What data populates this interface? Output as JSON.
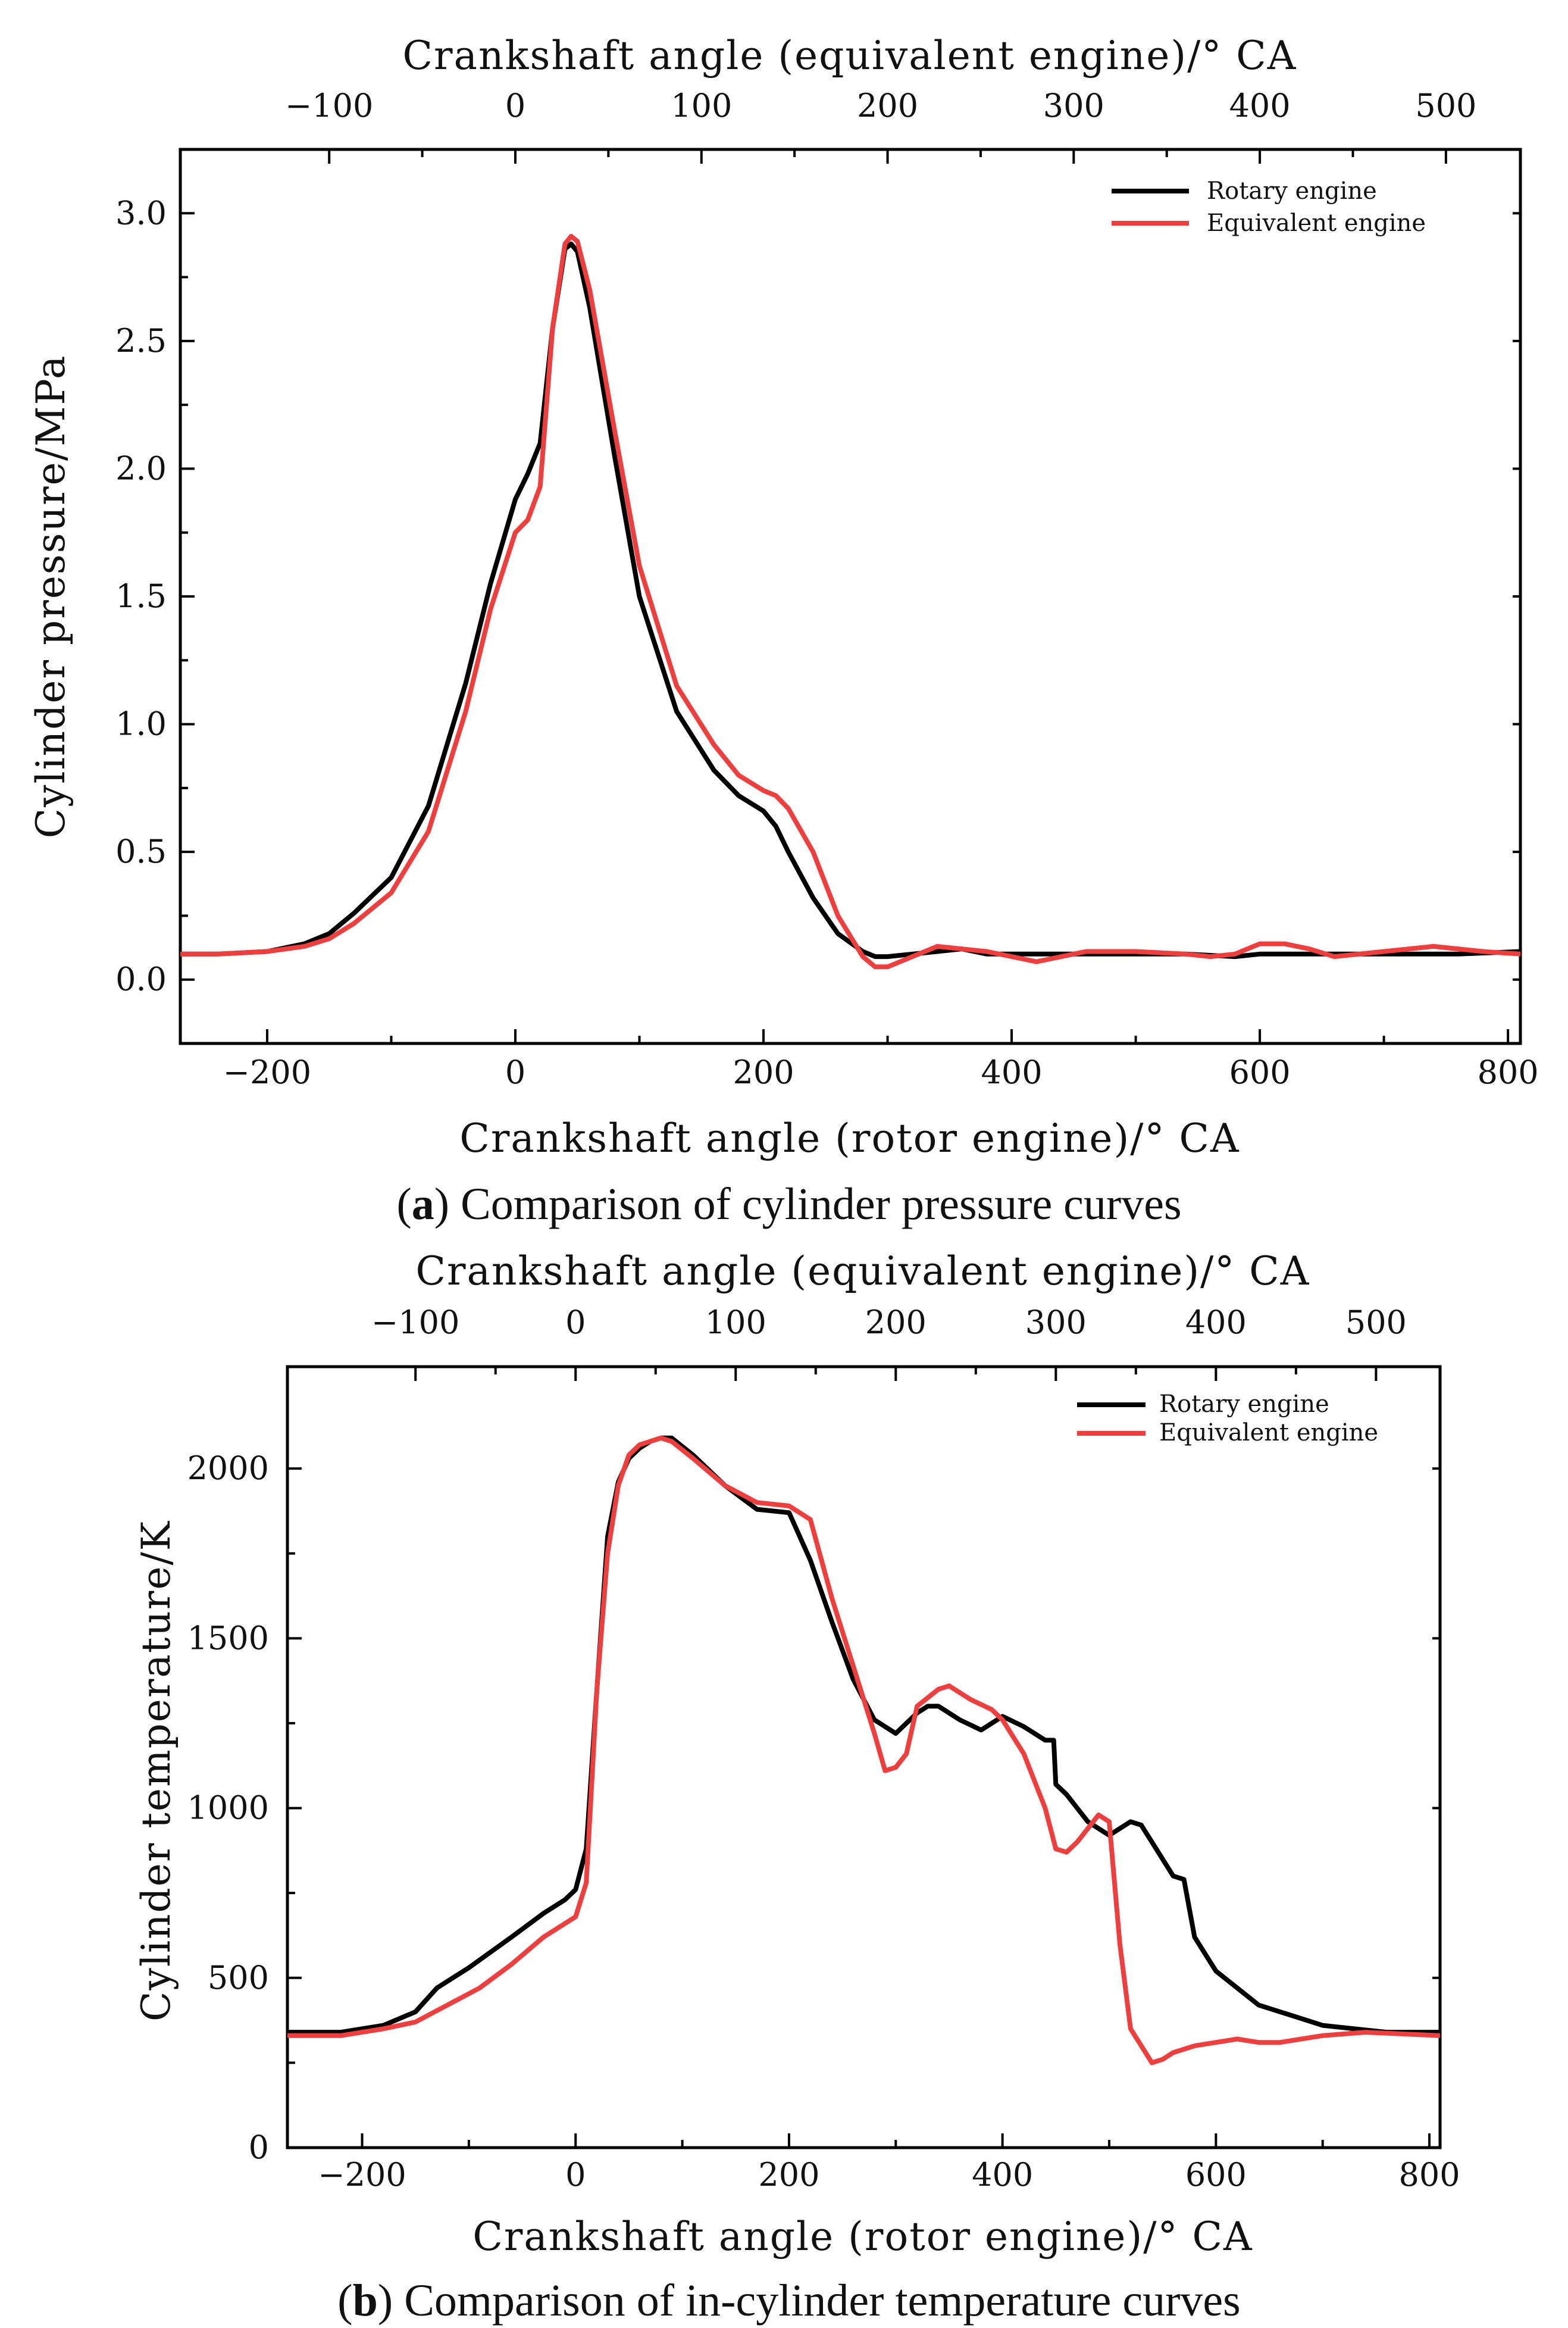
{
  "colors": {
    "rotary": "#000000",
    "equivalent": "#ef3e3e",
    "axis": "#000000"
  },
  "chart_data": [
    {
      "id": "a",
      "type": "line",
      "caption_label": "a",
      "caption_text": "Comparison of cylinder pressure curves",
      "xlabel": "Crankshaft angle (rotor engine)/° CA",
      "x2label": "Crankshaft angle (equivalent engine)/° CA",
      "ylabel": "Cylinder pressure/MPa",
      "xlim": [
        -270,
        810
      ],
      "x2lim": [
        -180,
        540
      ],
      "ylim": [
        -0.25,
        3.25
      ],
      "xticks": [
        -200,
        0,
        200,
        400,
        600,
        800
      ],
      "xtick_labels": [
        "−200",
        "0",
        "200",
        "400",
        "600",
        "800"
      ],
      "x2ticks": [
        -100,
        0,
        100,
        200,
        300,
        400,
        500
      ],
      "x2tick_labels": [
        "−100",
        "0",
        "100",
        "200",
        "300",
        "400",
        "500"
      ],
      "yticks": [
        0.0,
        0.5,
        1.0,
        1.5,
        2.0,
        2.5,
        3.0
      ],
      "ytick_labels": [
        "0.0",
        "0.5",
        "1.0",
        "1.5",
        "2.0",
        "2.5",
        "3.0"
      ],
      "legend": [
        "Rotary engine",
        "Equivalent engine"
      ],
      "series": [
        {
          "name": "Rotary engine",
          "color": "#000000",
          "x": [
            -270,
            -240,
            -200,
            -170,
            -150,
            -130,
            -100,
            -70,
            -40,
            -20,
            0,
            10,
            20,
            30,
            40,
            45,
            50,
            60,
            80,
            100,
            130,
            160,
            180,
            200,
            210,
            220,
            240,
            260,
            280,
            290,
            300,
            320,
            340,
            360,
            380,
            400,
            430,
            460,
            500,
            540,
            580,
            600,
            640,
            680,
            720,
            760,
            810
          ],
          "y": [
            0.1,
            0.1,
            0.11,
            0.14,
            0.18,
            0.26,
            0.4,
            0.68,
            1.16,
            1.55,
            1.88,
            1.98,
            2.1,
            2.55,
            2.86,
            2.88,
            2.85,
            2.63,
            2.05,
            1.5,
            1.05,
            0.82,
            0.72,
            0.66,
            0.6,
            0.5,
            0.32,
            0.18,
            0.11,
            0.09,
            0.09,
            0.1,
            0.11,
            0.12,
            0.1,
            0.1,
            0.1,
            0.1,
            0.1,
            0.1,
            0.09,
            0.1,
            0.1,
            0.1,
            0.1,
            0.1,
            0.11
          ]
        },
        {
          "name": "Equivalent engine",
          "color": "#ef3e3e",
          "x": [
            -270,
            -240,
            -200,
            -170,
            -150,
            -130,
            -100,
            -70,
            -40,
            -20,
            0,
            10,
            20,
            30,
            40,
            45,
            50,
            60,
            80,
            100,
            130,
            160,
            180,
            200,
            210,
            220,
            240,
            260,
            280,
            290,
            300,
            320,
            340,
            360,
            380,
            400,
            420,
            440,
            460,
            500,
            540,
            560,
            580,
            600,
            620,
            640,
            660,
            700,
            740,
            780,
            810
          ],
          "y": [
            0.1,
            0.1,
            0.11,
            0.13,
            0.16,
            0.22,
            0.34,
            0.58,
            1.05,
            1.45,
            1.75,
            1.8,
            1.93,
            2.55,
            2.88,
            2.91,
            2.89,
            2.7,
            2.15,
            1.62,
            1.15,
            0.92,
            0.8,
            0.74,
            0.72,
            0.67,
            0.5,
            0.25,
            0.09,
            0.05,
            0.05,
            0.09,
            0.13,
            0.12,
            0.11,
            0.09,
            0.07,
            0.09,
            0.11,
            0.11,
            0.1,
            0.09,
            0.1,
            0.14,
            0.14,
            0.12,
            0.09,
            0.11,
            0.13,
            0.11,
            0.1
          ]
        }
      ]
    },
    {
      "id": "b",
      "type": "line",
      "caption_label": "b",
      "caption_text": "Comparison of in-cylinder temperature curves",
      "xlabel": "Crankshaft angle (rotor engine)/° CA",
      "x2label": "Crankshaft angle (equivalent engine)/° CA",
      "ylabel": "Cylinder temperature/K",
      "xlim": [
        -270,
        810
      ],
      "x2lim": [
        -180,
        540
      ],
      "ylim": [
        0,
        2300
      ],
      "xticks": [
        -200,
        0,
        200,
        400,
        600,
        800
      ],
      "xtick_labels": [
        "−200",
        "0",
        "200",
        "400",
        "600",
        "800"
      ],
      "x2ticks": [
        -100,
        0,
        100,
        200,
        300,
        400,
        500
      ],
      "x2tick_labels": [
        "−100",
        "0",
        "100",
        "200",
        "300",
        "400",
        "500"
      ],
      "yticks": [
        0,
        500,
        1000,
        1500,
        2000
      ],
      "ytick_labels": [
        "0",
        "500",
        "1000",
        "1500",
        "2000"
      ],
      "legend": [
        "Rotary engine",
        "Equivalent engine"
      ],
      "series": [
        {
          "name": "Rotary engine",
          "color": "#000000",
          "x": [
            -270,
            -220,
            -180,
            -150,
            -130,
            -100,
            -60,
            -30,
            -10,
            0,
            10,
            20,
            30,
            40,
            50,
            60,
            70,
            80,
            90,
            110,
            140,
            170,
            200,
            220,
            240,
            260,
            280,
            300,
            320,
            330,
            340,
            360,
            380,
            400,
            420,
            440,
            448,
            450,
            460,
            480,
            500,
            520,
            530,
            540,
            560,
            570,
            580,
            600,
            640,
            700,
            760,
            810
          ],
          "y": [
            340,
            340,
            360,
            400,
            470,
            530,
            620,
            690,
            730,
            760,
            880,
            1350,
            1800,
            1960,
            2030,
            2060,
            2080,
            2090,
            2090,
            2040,
            1950,
            1880,
            1870,
            1730,
            1550,
            1380,
            1260,
            1220,
            1280,
            1300,
            1300,
            1260,
            1230,
            1270,
            1240,
            1200,
            1200,
            1070,
            1040,
            960,
            920,
            960,
            950,
            900,
            800,
            790,
            620,
            520,
            420,
            360,
            340,
            340
          ]
        },
        {
          "name": "Equivalent engine",
          "color": "#ef3e3e",
          "x": [
            -270,
            -220,
            -180,
            -150,
            -120,
            -90,
            -60,
            -30,
            -10,
            0,
            10,
            20,
            30,
            40,
            50,
            60,
            70,
            80,
            90,
            110,
            140,
            170,
            200,
            220,
            240,
            260,
            280,
            290,
            300,
            310,
            320,
            340,
            350,
            370,
            390,
            400,
            420,
            440,
            450,
            460,
            470,
            490,
            500,
            510,
            520,
            540,
            550,
            560,
            580,
            600,
            620,
            640,
            660,
            700,
            740,
            810
          ],
          "y": [
            330,
            330,
            350,
            370,
            420,
            470,
            540,
            620,
            660,
            680,
            780,
            1350,
            1750,
            1950,
            2040,
            2070,
            2080,
            2090,
            2080,
            2030,
            1950,
            1900,
            1890,
            1850,
            1620,
            1420,
            1220,
            1110,
            1120,
            1160,
            1300,
            1350,
            1360,
            1320,
            1290,
            1260,
            1160,
            1000,
            880,
            870,
            900,
            980,
            960,
            600,
            350,
            250,
            260,
            280,
            300,
            310,
            320,
            310,
            310,
            330,
            340,
            330
          ]
        }
      ]
    }
  ]
}
